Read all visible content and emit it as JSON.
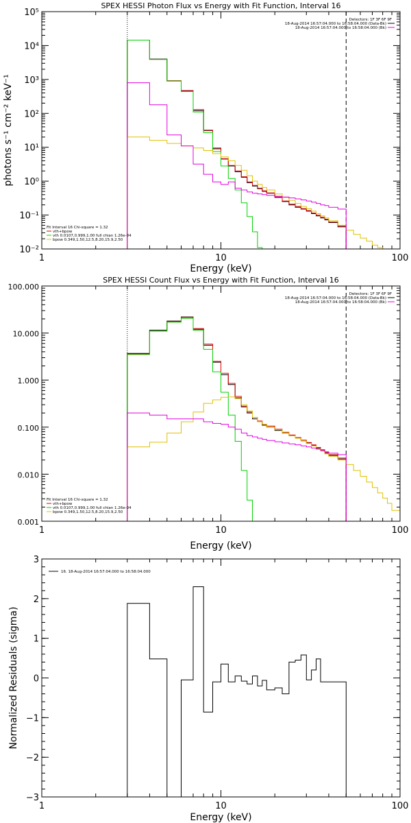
{
  "colors": {
    "data": "#000000",
    "total": "#e00000",
    "vth": "#00d000",
    "bpow": "#e0c000",
    "bkg": "#e000e0"
  },
  "chart_data": [
    {
      "type": "line",
      "title": "SPEX HESSI Photon Flux vs Energy with Fit Function, Interval 16",
      "xlabel": "Energy (keV)",
      "ylabel": "photons s⁻¹ cm⁻² keV⁻¹",
      "xscale": "log",
      "yscale": "log",
      "xlim": [
        1,
        100
      ],
      "ylim": [
        0.01,
        100000
      ],
      "xticks": [
        {
          "v": 1,
          "t": "1"
        },
        {
          "v": 10,
          "t": "10"
        },
        {
          "v": 100,
          "t": "100"
        }
      ],
      "yticks": [
        {
          "v": 0.01,
          "t": "10⁻²"
        },
        {
          "v": 0.1,
          "t": "10⁻¹"
        },
        {
          "v": 1,
          "t": "10⁰"
        },
        {
          "v": 10,
          "t": "10¹"
        },
        {
          "v": 100,
          "t": "10²"
        },
        {
          "v": 1000,
          "t": "10³"
        },
        {
          "v": 10000,
          "t": "10⁴"
        },
        {
          "v": 100000,
          "t": "10⁵"
        }
      ],
      "vlines": [
        {
          "x": 3,
          "style": "dotted"
        },
        {
          "x": 50,
          "style": "dashed"
        }
      ],
      "legend_top": [
        "Detectors: 1F 3F 6F 9F",
        "18-Aug-2014 16:57:04.000 to 16:58:04.000 (Data-Bk)",
        "18-Aug-2014 16:57:04.000 to 16:58:04.000 (Bk)"
      ],
      "legend_bottom": [
        "Fit Interval 16   Chi-square = 1.32",
        "vth+bpow",
        "vth 0.0107,0.999,1.00  full chian 1.26e-04",
        "bpow 0.349,1.50,12.5,8.20,15.9,2.50"
      ],
      "edges": [
        3,
        4,
        5,
        6,
        7,
        8,
        9,
        10,
        11,
        12,
        13,
        14,
        15,
        16,
        17,
        18,
        20,
        22,
        24,
        26,
        28,
        30,
        32,
        34,
        36,
        38,
        40,
        45,
        50,
        55,
        60,
        65,
        70,
        75,
        80
      ],
      "series": [
        {
          "name": "Data-Bk",
          "color": "data",
          "values": [
            14500,
            4000,
            900,
            470,
            120,
            31,
            9,
            4.5,
            2.8,
            1.9,
            1.3,
            0.9,
            0.72,
            0.6,
            0.5,
            0.44,
            0.33,
            0.25,
            0.2,
            0.17,
            0.15,
            0.13,
            0.11,
            0.095,
            0.082,
            0.072,
            0.06,
            0.045
          ]
        },
        {
          "name": "vth+bpow",
          "color": "total",
          "values": [
            14500,
            3900,
            920,
            460,
            130,
            32,
            9.5,
            4.6,
            2.9,
            2.0,
            1.35,
            0.95,
            0.75,
            0.62,
            0.52,
            0.45,
            0.34,
            0.26,
            0.21,
            0.18,
            0.155,
            0.135,
            0.115,
            0.1,
            0.086,
            0.075,
            0.062,
            0.047
          ]
        },
        {
          "name": "vth",
          "color": "vth",
          "values": [
            14500,
            3900,
            900,
            440,
            110,
            27,
            7.5,
            2.8,
            1.2,
            0.55,
            0.23,
            0.09,
            0.032,
            0.011
          ]
        },
        {
          "name": "bpow",
          "color": "bpow",
          "values": [
            20,
            16,
            13,
            11,
            9.5,
            8,
            6.5,
            5.2,
            4,
            2.9,
            2.1,
            1.45,
            1.0,
            0.8,
            0.65,
            0.55,
            0.42,
            0.33,
            0.27,
            0.22,
            0.18,
            0.155,
            0.13,
            0.11,
            0.095,
            0.082,
            0.068,
            0.05,
            0.036,
            0.027,
            0.021,
            0.017,
            0.013,
            0.011
          ]
        },
        {
          "name": "Bk",
          "color": "bkg",
          "values": [
            800,
            180,
            23,
            11,
            3.2,
            1.6,
            0.95,
            0.8,
            0.95,
            0.62,
            0.55,
            0.48,
            0.44,
            0.42,
            0.4,
            0.38,
            0.36,
            0.34,
            0.32,
            0.3,
            0.28,
            0.26,
            0.24,
            0.22,
            0.2,
            0.19,
            0.17,
            0.15
          ]
        }
      ]
    },
    {
      "type": "line",
      "title": "SPEX HESSI Count Flux vs Energy with Fit Function, Interval 16",
      "xlabel": "Energy (keV)",
      "ylabel": "",
      "xscale": "log",
      "yscale": "log",
      "xlim": [
        1,
        100
      ],
      "ylim": [
        0.001,
        100
      ],
      "xticks": [
        {
          "v": 1,
          "t": "1"
        },
        {
          "v": 10,
          "t": "10"
        },
        {
          "v": 100,
          "t": "100"
        }
      ],
      "yticks": [
        {
          "v": 0.001,
          "t": "0.001"
        },
        {
          "v": 0.01,
          "t": "0.010"
        },
        {
          "v": 0.1,
          "t": "0.100"
        },
        {
          "v": 1,
          "t": "1.000"
        },
        {
          "v": 10,
          "t": "10.000"
        },
        {
          "v": 100,
          "t": "100.000"
        }
      ],
      "vlines": [
        {
          "x": 3,
          "style": "dotted"
        },
        {
          "x": 50,
          "style": "dashed"
        }
      ],
      "legend_top": [
        "Detectors: 1F 3F 6F 9F",
        "18-Aug-2014 16:57:04.000 to 16:58:04.000 (Data-Bk)",
        "18-Aug-2014 16:57:04.000 to 16:58:04.000 (Bk)"
      ],
      "legend_bottom": [
        "Fit Interval 16   Chi-square = 1.32",
        "vth+bpow",
        "vth 0.0107,0.999,1.00  full chian 1.26e-04",
        "bpow 0.349,1.50,12.5,8.20,15.9,2.50"
      ],
      "edges": [
        3,
        4,
        5,
        6,
        7,
        8,
        9,
        10,
        11,
        12,
        13,
        14,
        15,
        16,
        17,
        18,
        20,
        22,
        24,
        26,
        28,
        30,
        32,
        34,
        36,
        38,
        40,
        45,
        50,
        55,
        60,
        65,
        70,
        75,
        80,
        85,
        90,
        100
      ],
      "series": [
        {
          "name": "Data-Bk",
          "color": "data",
          "values": [
            3.7,
            11.5,
            18,
            22,
            12,
            5.5,
            2.4,
            1.3,
            0.8,
            0.42,
            0.27,
            0.2,
            0.15,
            0.13,
            0.11,
            0.1,
            0.085,
            0.075,
            0.066,
            0.058,
            0.051,
            0.046,
            0.041,
            0.036,
            0.032,
            0.028,
            0.025,
            0.021
          ]
        },
        {
          "name": "vth+bpow",
          "color": "total",
          "values": [
            3.6,
            11,
            17.5,
            21.5,
            12.5,
            5.8,
            2.5,
            1.4,
            0.85,
            0.45,
            0.28,
            0.21,
            0.16,
            0.135,
            0.115,
            0.105,
            0.09,
            0.078,
            0.068,
            0.06,
            0.053,
            0.047,
            0.042,
            0.037,
            0.033,
            0.029,
            0.026,
            0.022
          ]
        },
        {
          "name": "vth",
          "color": "vth",
          "values": [
            3.5,
            11,
            17,
            20.5,
            11.5,
            4.5,
            1.5,
            0.55,
            0.18,
            0.05,
            0.012,
            0.0028,
            0.001
          ]
        },
        {
          "name": "bpow",
          "color": "bpow",
          "values": [
            0.038,
            0.048,
            0.075,
            0.13,
            0.21,
            0.32,
            0.38,
            0.43,
            0.44,
            0.4,
            0.3,
            0.22,
            0.16,
            0.13,
            0.115,
            0.1,
            0.088,
            0.076,
            0.066,
            0.058,
            0.051,
            0.045,
            0.04,
            0.035,
            0.031,
            0.027,
            0.024,
            0.02,
            0.016,
            0.012,
            0.009,
            0.0068,
            0.0052,
            0.004,
            0.0031,
            0.0024,
            0.0017
          ]
        },
        {
          "name": "Bk",
          "color": "bkg",
          "values": [
            0.2,
            0.18,
            0.15,
            0.15,
            0.15,
            0.13,
            0.12,
            0.115,
            0.1,
            0.09,
            0.075,
            0.066,
            0.062,
            0.058,
            0.055,
            0.052,
            0.049,
            0.046,
            0.044,
            0.042,
            0.04,
            0.038,
            0.036,
            0.034,
            0.032,
            0.03,
            0.028,
            0.026
          ]
        }
      ]
    },
    {
      "type": "line",
      "title": "",
      "xlabel": "Energy (keV)",
      "ylabel": "Normalized Residuals (sigma)",
      "xscale": "log",
      "yscale": "linear",
      "xlim": [
        1,
        100
      ],
      "ylim": [
        -3,
        3
      ],
      "xticks": [
        {
          "v": 1,
          "t": "1"
        },
        {
          "v": 10,
          "t": "10"
        },
        {
          "v": 100,
          "t": "100"
        }
      ],
      "yticks": [
        {
          "v": -3,
          "t": "−3"
        },
        {
          "v": -2,
          "t": "−2"
        },
        {
          "v": -1,
          "t": "−1"
        },
        {
          "v": 0,
          "t": "0"
        },
        {
          "v": 1,
          "t": "1"
        },
        {
          "v": 2,
          "t": "2"
        },
        {
          "v": 3,
          "t": "3"
        }
      ],
      "legend_top": [
        "16. 18-Aug-2014 16:57:04.000 to 16:58:04.000"
      ],
      "edges": [
        3,
        4,
        5,
        6,
        7,
        8,
        9,
        10,
        11,
        12,
        13,
        14,
        15,
        16,
        17,
        18,
        20,
        22,
        24,
        26,
        28,
        30,
        32,
        34,
        36,
        38,
        40,
        45,
        50
      ],
      "series": [
        {
          "name": "16. 18-Aug-2014 16:57:04.000 to 16:58:04.000",
          "color": "data",
          "values": [
            1.88,
            0.48,
            -3.0,
            -0.05,
            2.3,
            -0.86,
            -0.1,
            0.35,
            -0.1,
            0.05,
            -0.08,
            -0.15,
            0.05,
            -0.2,
            -0.06,
            -0.3,
            -0.25,
            -0.4,
            0.4,
            0.45,
            0.58,
            -0.05,
            0.2,
            0.48,
            -0.1,
            -0.1,
            -0.1,
            -0.1
          ]
        }
      ]
    }
  ]
}
